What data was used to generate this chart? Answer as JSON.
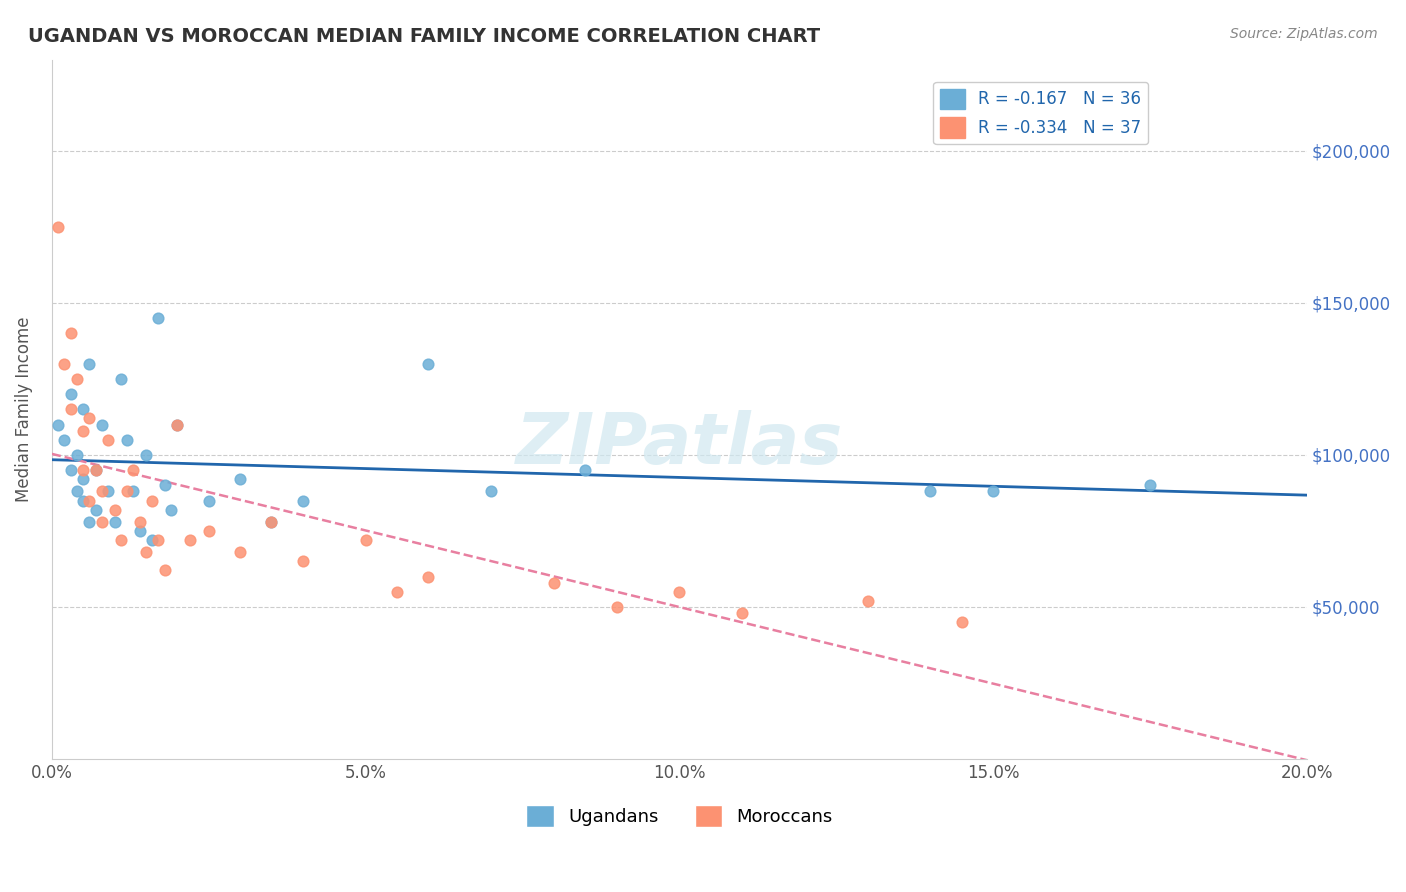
{
  "title": "UGANDAN VS MOROCCAN MEDIAN FAMILY INCOME CORRELATION CHART",
  "source": "Source: ZipAtlas.com",
  "xlabel": "",
  "ylabel": "Median Family Income",
  "xlim": [
    0.0,
    0.2
  ],
  "ylim": [
    0,
    230000
  ],
  "yticks": [
    0,
    50000,
    100000,
    150000,
    200000
  ],
  "ytick_labels": [
    "",
    "$50,000",
    "$100,000",
    "$150,000",
    "$200,000"
  ],
  "xticks": [
    0.0,
    0.05,
    0.1,
    0.15,
    0.2
  ],
  "xtick_labels": [
    "0.0%",
    "5.0%",
    "10.0%",
    "15.0%",
    "20.0%"
  ],
  "watermark": "ZIPatlas",
  "ugandan_color": "#6baed6",
  "moroccan_color": "#fc9272",
  "ugandan_R": -0.167,
  "ugandan_N": 36,
  "moroccan_R": -0.334,
  "moroccan_N": 37,
  "trend_color_ugandan": "#2166ac",
  "trend_color_moroccan": "#e87fa0",
  "ugandans_x": [
    0.001,
    0.002,
    0.003,
    0.003,
    0.004,
    0.004,
    0.005,
    0.005,
    0.005,
    0.006,
    0.006,
    0.007,
    0.007,
    0.008,
    0.009,
    0.01,
    0.011,
    0.012,
    0.013,
    0.014,
    0.015,
    0.016,
    0.017,
    0.018,
    0.019,
    0.02,
    0.025,
    0.03,
    0.035,
    0.04,
    0.06,
    0.07,
    0.085,
    0.14,
    0.15,
    0.175
  ],
  "ugandans_y": [
    110000,
    105000,
    120000,
    95000,
    100000,
    88000,
    115000,
    92000,
    85000,
    78000,
    130000,
    95000,
    82000,
    110000,
    88000,
    78000,
    125000,
    105000,
    88000,
    75000,
    100000,
    72000,
    145000,
    90000,
    82000,
    110000,
    85000,
    92000,
    78000,
    85000,
    130000,
    88000,
    95000,
    88000,
    88000,
    90000
  ],
  "moroccans_x": [
    0.001,
    0.002,
    0.003,
    0.003,
    0.004,
    0.005,
    0.005,
    0.006,
    0.006,
    0.007,
    0.008,
    0.008,
    0.009,
    0.01,
    0.011,
    0.012,
    0.013,
    0.014,
    0.015,
    0.016,
    0.017,
    0.018,
    0.02,
    0.022,
    0.025,
    0.03,
    0.035,
    0.04,
    0.05,
    0.055,
    0.06,
    0.08,
    0.09,
    0.1,
    0.11,
    0.13,
    0.145
  ],
  "moroccans_y": [
    175000,
    130000,
    140000,
    115000,
    125000,
    108000,
    95000,
    112000,
    85000,
    95000,
    88000,
    78000,
    105000,
    82000,
    72000,
    88000,
    95000,
    78000,
    68000,
    85000,
    72000,
    62000,
    110000,
    72000,
    75000,
    68000,
    78000,
    65000,
    72000,
    55000,
    60000,
    58000,
    50000,
    55000,
    48000,
    52000,
    45000
  ]
}
